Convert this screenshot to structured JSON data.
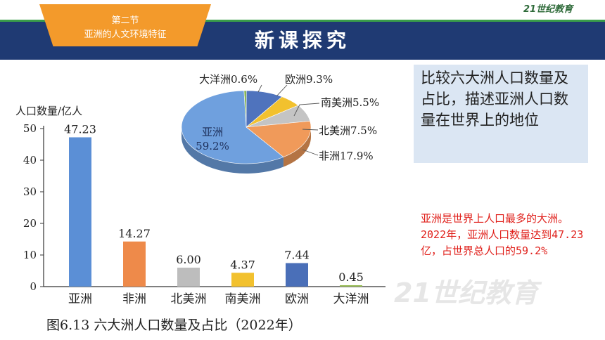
{
  "header": {
    "section": "第二节",
    "topic": "亚洲的人文环境特征",
    "title": "新课探究",
    "logo_text": "21世纪教育"
  },
  "question": {
    "text": "比较六大洲人口数量及占比，描述亚洲人口数量在世界上的地位"
  },
  "answer": {
    "text": "亚洲是世界上人口最多的大洲。2022年，亚洲人口数量达到47.23亿，占世界总人口的59.2%"
  },
  "watermark": {
    "text": "21世纪教育"
  },
  "figure": {
    "caption": "图6.13 六大洲人口数量及占比（2022年）"
  },
  "colors": {
    "banner": "#1f3a73",
    "tag": "#f39a2b",
    "answer": "#e0201b",
    "box": "#dbe6f3"
  },
  "chart_data": [
    {
      "type": "bar",
      "ylabel": "人口数量/亿人",
      "ylim": [
        0,
        50
      ],
      "yticks": [
        0,
        10,
        20,
        30,
        40,
        50
      ],
      "categories": [
        "亚洲",
        "非洲",
        "北美洲",
        "南美洲",
        "欧洲",
        "大洋洲"
      ],
      "values": [
        47.23,
        14.27,
        6.0,
        4.37,
        7.44,
        0.45
      ],
      "value_labels": [
        "47.23",
        "14.27",
        "6.00",
        "4.37",
        "7.44",
        "0.45"
      ],
      "colors": [
        "#5b8fd6",
        "#ee8a4a",
        "#bdbdbd",
        "#f2c12e",
        "#4a6fb8",
        "#9bbf59"
      ]
    },
    {
      "type": "pie",
      "labels": [
        "亚洲",
        "非洲",
        "北美洲",
        "南美洲",
        "欧洲",
        "大洋洲"
      ],
      "values": [
        59.2,
        17.9,
        7.5,
        5.5,
        9.3,
        0.6
      ],
      "value_labels": [
        "59.2%",
        "17.9%",
        "7.5%",
        "5.5%",
        "9.3%",
        "0.6%"
      ],
      "colors": [
        "#6fa0de",
        "#f09a5a",
        "#c4c4c4",
        "#f2c12e",
        "#4f73bd",
        "#7fb04a"
      ]
    }
  ]
}
